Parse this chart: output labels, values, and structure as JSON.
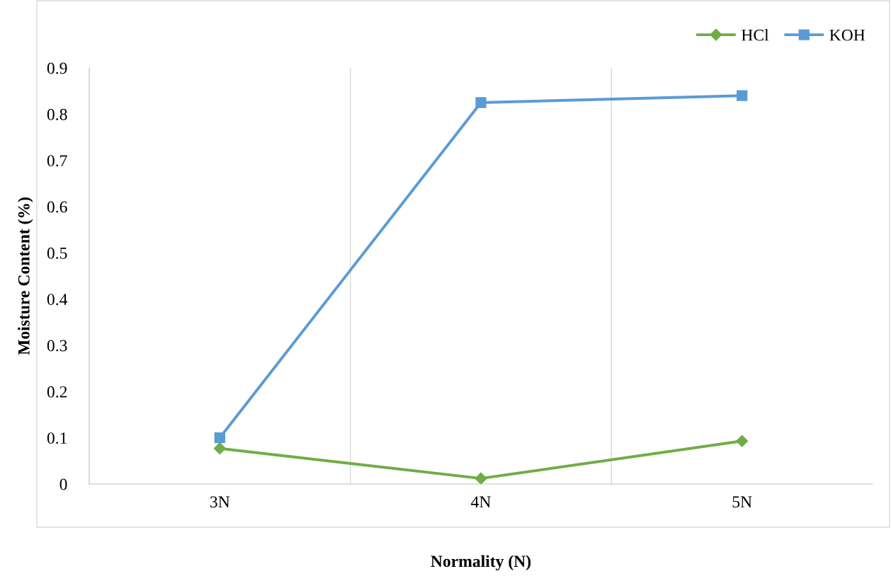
{
  "chart_data": {
    "type": "line",
    "xlabel": "Normality (N)",
    "ylabel": "Moisture Content (%)",
    "categories": [
      "3N",
      "4N",
      "5N"
    ],
    "series": [
      {
        "name": "HCl",
        "color": "#70ad47",
        "marker": "diamond",
        "values": [
          0.077,
          0.012,
          0.093
        ]
      },
      {
        "name": "KOH",
        "color": "#5b9bd5",
        "marker": "square",
        "values": [
          0.1,
          0.825,
          0.84
        ]
      }
    ],
    "ylim": [
      0,
      0.9
    ],
    "yticks": [
      0,
      0.1,
      0.2,
      0.3,
      0.4,
      0.5,
      0.6,
      0.7,
      0.8,
      0.9
    ],
    "grid": "x",
    "legend": "top right"
  }
}
